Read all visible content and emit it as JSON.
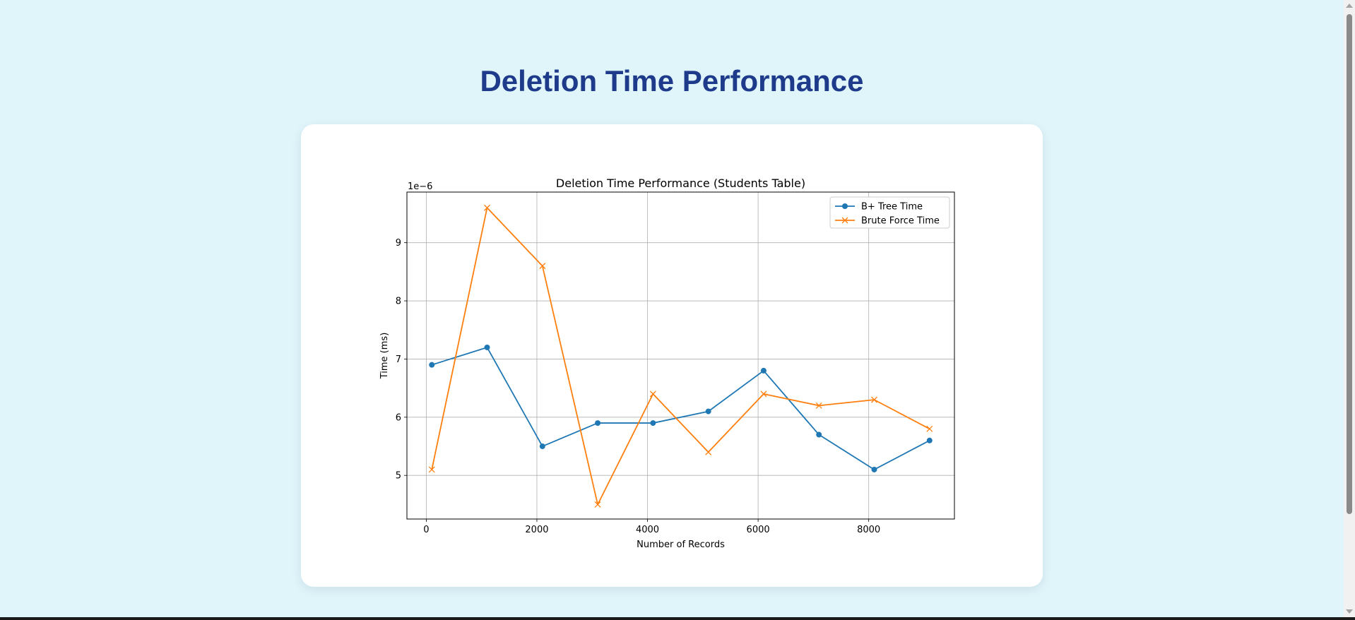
{
  "page": {
    "title": "Deletion Time Performance"
  },
  "colors": {
    "page_background": "#e0f5fa",
    "title": "#1e3a8a",
    "series_bplus": "#1f77b4",
    "series_brute": "#ff7f0e"
  },
  "chart_data": {
    "type": "line",
    "title": "Deletion Time Performance (Students Table)",
    "xlabel": "Number of Records",
    "ylabel": "Time (ms)",
    "offset_text": "1e−6",
    "x": [
      100,
      1100,
      2100,
      3100,
      4100,
      5100,
      6100,
      7100,
      8100,
      9100
    ],
    "xlim": [
      -350,
      9550
    ],
    "ylim": [
      4.25e-06,
      9.87e-06
    ],
    "xticks": [
      0,
      2000,
      4000,
      6000,
      8000
    ],
    "xtick_labels": [
      "0",
      "2000",
      "4000",
      "6000",
      "8000"
    ],
    "yticks": [
      5e-06,
      6e-06,
      7e-06,
      8e-06,
      9e-06
    ],
    "ytick_labels": [
      "5",
      "6",
      "7",
      "8",
      "9"
    ],
    "grid": true,
    "legend_position": "top-right",
    "series": [
      {
        "name": "B+ Tree Time",
        "marker": "circle",
        "color": "#1f77b4",
        "values": [
          6.9e-06,
          7.2e-06,
          5.5e-06,
          5.9e-06,
          5.9e-06,
          6.1e-06,
          6.8e-06,
          5.7e-06,
          5.1e-06,
          5.6e-06
        ]
      },
      {
        "name": "Brute Force Time",
        "marker": "x",
        "color": "#ff7f0e",
        "values": [
          5.1e-06,
          9.6e-06,
          8.6e-06,
          4.5e-06,
          6.4e-06,
          5.4e-06,
          6.4e-06,
          6.2e-06,
          6.3e-06,
          5.8e-06
        ]
      }
    ]
  }
}
